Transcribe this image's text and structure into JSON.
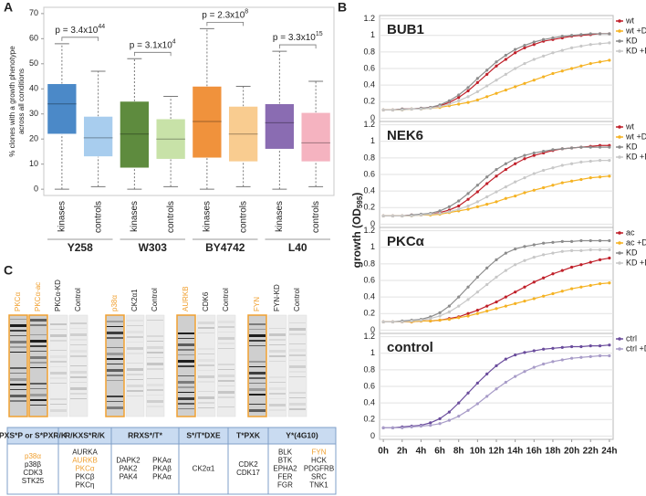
{
  "panels": [
    "A",
    "B",
    "C"
  ],
  "chart_data": [
    {
      "type": "box",
      "ylabel": [
        "% clones with a growth phenotype",
        "across all conditions"
      ],
      "ylim": [
        -2.5,
        72.5
      ],
      "yticks": [
        0,
        10,
        20,
        30,
        40,
        50,
        60,
        70
      ],
      "groups": [
        {
          "name": "Y258",
          "p_value": {
            "text": "p = 3.4x10",
            "exponent": "44"
          },
          "boxes": [
            {
              "label": "kinases",
              "color": "#4b89c8",
              "whisker_low": 0,
              "q1": 22,
              "median": 34,
              "q3": 42,
              "whisker_high": 58
            },
            {
              "label": "controls",
              "color": "#a8cdee",
              "whisker_low": 1,
              "q1": 13,
              "median": 20.5,
              "q3": 29,
              "whisker_high": 47
            }
          ]
        },
        {
          "name": "W303",
          "p_value": {
            "text": "p = 3.1x10",
            "exponent": "4"
          },
          "boxes": [
            {
              "label": "kinases",
              "color": "#5e8b3e",
              "whisker_low": 0,
              "q1": 8.5,
              "median": 22,
              "q3": 35,
              "whisker_high": 52
            },
            {
              "label": "controls",
              "color": "#c8e2a8",
              "whisker_low": 1,
              "q1": 12,
              "median": 20,
              "q3": 28,
              "whisker_high": 37
            }
          ]
        },
        {
          "name": "BY4742",
          "p_value": {
            "text": "p = 2.3x10",
            "exponent": "8"
          },
          "boxes": [
            {
              "label": "kinases",
              "color": "#f0923c",
              "whisker_low": 0,
              "q1": 12.5,
              "median": 27,
              "q3": 41,
              "whisker_high": 64
            },
            {
              "label": "controls",
              "color": "#f9cc90",
              "whisker_low": 1,
              "q1": 11,
              "median": 22,
              "q3": 33,
              "whisker_high": 41
            }
          ]
        },
        {
          "name": "L40",
          "p_value": {
            "text": "p = 3.3x10",
            "exponent": "15"
          },
          "boxes": [
            {
              "label": "kinases",
              "color": "#8a6cb2",
              "whisker_low": 0,
              "q1": 16,
              "median": 26.5,
              "q3": 34,
              "whisker_high": 55
            },
            {
              "label": "controls",
              "color": "#f5b3c0",
              "whisker_low": 1,
              "q1": 11,
              "median": 18.5,
              "q3": 30.5,
              "whisker_high": 43
            }
          ]
        }
      ]
    },
    {
      "type": "line",
      "title": "BUB1",
      "x": [
        0,
        1,
        2,
        3,
        4,
        5,
        6,
        7,
        8,
        9,
        10,
        11,
        12,
        13,
        14,
        15,
        16,
        17,
        18,
        19,
        20,
        21,
        22,
        23,
        24
      ],
      "xlim": [
        -0.4,
        24.4
      ],
      "ylim": [
        -0.04,
        1.24
      ],
      "yticks": [
        0,
        0.2,
        0.4,
        0.6,
        0.8,
        1,
        1.2
      ],
      "grid": true,
      "series": [
        {
          "name": "wt",
          "color": "#c0202a",
          "values": [
            0.1,
            0.1,
            0.11,
            0.11,
            0.12,
            0.13,
            0.15,
            0.19,
            0.25,
            0.33,
            0.43,
            0.53,
            0.63,
            0.71,
            0.79,
            0.85,
            0.89,
            0.93,
            0.95,
            0.97,
            0.99,
            1.0,
            1.01,
            1.02,
            1.02
          ]
        },
        {
          "name": "wt +DMSO",
          "color": "#f5b324",
          "values": [
            0.1,
            0.1,
            0.1,
            0.11,
            0.11,
            0.12,
            0.13,
            0.15,
            0.17,
            0.19,
            0.22,
            0.26,
            0.3,
            0.34,
            0.38,
            0.42,
            0.46,
            0.5,
            0.54,
            0.57,
            0.6,
            0.63,
            0.66,
            0.68,
            0.7
          ]
        },
        {
          "name": "KD",
          "color": "#8c8c8c",
          "values": [
            0.1,
            0.1,
            0.11,
            0.11,
            0.12,
            0.13,
            0.16,
            0.21,
            0.28,
            0.37,
            0.48,
            0.58,
            0.68,
            0.76,
            0.83,
            0.88,
            0.92,
            0.95,
            0.97,
            0.99,
            1.0,
            1.01,
            1.02,
            1.02,
            1.02
          ]
        },
        {
          "name": "KD +DMSO",
          "color": "#c8c8c8",
          "values": [
            0.1,
            0.1,
            0.1,
            0.11,
            0.11,
            0.12,
            0.14,
            0.17,
            0.21,
            0.26,
            0.32,
            0.39,
            0.46,
            0.53,
            0.6,
            0.66,
            0.71,
            0.75,
            0.79,
            0.82,
            0.85,
            0.87,
            0.89,
            0.9,
            0.91
          ]
        }
      ]
    },
    {
      "type": "line",
      "title": "NEK6",
      "x": [
        0,
        1,
        2,
        3,
        4,
        5,
        6,
        7,
        8,
        9,
        10,
        11,
        12,
        13,
        14,
        15,
        16,
        17,
        18,
        19,
        20,
        21,
        22,
        23,
        24
      ],
      "xlim": [
        -0.4,
        24.4
      ],
      "ylim": [
        -0.04,
        1.24
      ],
      "yticks": [
        0,
        0.2,
        0.4,
        0.6,
        0.8,
        1,
        1.2
      ],
      "grid": true,
      "series": [
        {
          "name": "wt",
          "color": "#c0202a",
          "values": [
            0.1,
            0.1,
            0.1,
            0.11,
            0.11,
            0.12,
            0.14,
            0.17,
            0.22,
            0.3,
            0.39,
            0.49,
            0.58,
            0.66,
            0.73,
            0.79,
            0.83,
            0.86,
            0.89,
            0.91,
            0.92,
            0.93,
            0.94,
            0.95,
            0.95
          ]
        },
        {
          "name": "wt +DMSO",
          "color": "#f5b324",
          "values": [
            0.1,
            0.1,
            0.1,
            0.1,
            0.11,
            0.11,
            0.12,
            0.14,
            0.16,
            0.18,
            0.21,
            0.24,
            0.27,
            0.31,
            0.34,
            0.38,
            0.41,
            0.44,
            0.47,
            0.5,
            0.52,
            0.54,
            0.56,
            0.57,
            0.58
          ]
        },
        {
          "name": "KD",
          "color": "#8c8c8c",
          "values": [
            0.1,
            0.1,
            0.1,
            0.11,
            0.12,
            0.13,
            0.16,
            0.21,
            0.28,
            0.37,
            0.47,
            0.57,
            0.66,
            0.73,
            0.79,
            0.83,
            0.86,
            0.88,
            0.9,
            0.91,
            0.92,
            0.93,
            0.93,
            0.93,
            0.93
          ]
        },
        {
          "name": "KD +DMSO",
          "color": "#c8c8c8",
          "values": [
            0.1,
            0.1,
            0.1,
            0.1,
            0.11,
            0.12,
            0.13,
            0.15,
            0.18,
            0.22,
            0.27,
            0.33,
            0.39,
            0.45,
            0.51,
            0.56,
            0.61,
            0.65,
            0.68,
            0.71,
            0.73,
            0.75,
            0.76,
            0.77,
            0.77
          ]
        }
      ]
    },
    {
      "type": "line",
      "title": "PKCα",
      "x": [
        0,
        1,
        2,
        3,
        4,
        5,
        6,
        7,
        8,
        9,
        10,
        11,
        12,
        13,
        14,
        15,
        16,
        17,
        18,
        19,
        20,
        21,
        22,
        23,
        24
      ],
      "xlim": [
        -0.4,
        24.4
      ],
      "ylim": [
        -0.04,
        1.24
      ],
      "yticks": [
        0,
        0.2,
        0.4,
        0.6,
        0.8,
        1,
        1.2
      ],
      "grid": true,
      "series": [
        {
          "name": "ac",
          "color": "#c0202a",
          "values": [
            0.1,
            0.1,
            0.1,
            0.1,
            0.11,
            0.11,
            0.12,
            0.14,
            0.16,
            0.2,
            0.24,
            0.29,
            0.34,
            0.4,
            0.46,
            0.52,
            0.58,
            0.63,
            0.68,
            0.72,
            0.76,
            0.79,
            0.82,
            0.85,
            0.87
          ]
        },
        {
          "name": "ac +DMSO",
          "color": "#f5b324",
          "values": [
            0.1,
            0.1,
            0.1,
            0.1,
            0.11,
            0.11,
            0.12,
            0.13,
            0.15,
            0.17,
            0.2,
            0.23,
            0.26,
            0.29,
            0.32,
            0.35,
            0.38,
            0.41,
            0.44,
            0.47,
            0.5,
            0.52,
            0.54,
            0.56,
            0.57
          ]
        },
        {
          "name": "KD",
          "color": "#8c8c8c",
          "values": [
            0.1,
            0.1,
            0.11,
            0.12,
            0.13,
            0.16,
            0.21,
            0.29,
            0.4,
            0.52,
            0.64,
            0.75,
            0.85,
            0.93,
            0.98,
            1.01,
            1.03,
            1.05,
            1.06,
            1.07,
            1.07,
            1.08,
            1.08,
            1.08,
            1.08
          ]
        },
        {
          "name": "KD +DMSO",
          "color": "#c8c8c8",
          "values": [
            0.1,
            0.1,
            0.1,
            0.11,
            0.12,
            0.14,
            0.17,
            0.22,
            0.29,
            0.37,
            0.46,
            0.55,
            0.64,
            0.72,
            0.79,
            0.84,
            0.88,
            0.91,
            0.93,
            0.95,
            0.96,
            0.96,
            0.97,
            0.97,
            0.97
          ]
        }
      ]
    },
    {
      "type": "line",
      "title": "control",
      "x": [
        0,
        1,
        2,
        3,
        4,
        5,
        6,
        7,
        8,
        9,
        10,
        11,
        12,
        13,
        14,
        15,
        16,
        17,
        18,
        19,
        20,
        21,
        22,
        23,
        24
      ],
      "xlim": [
        -0.4,
        24.4
      ],
      "ylim": [
        -0.04,
        1.24
      ],
      "yticks": [
        0,
        0.2,
        0.4,
        0.6,
        0.8,
        1,
        1.2
      ],
      "grid": true,
      "xticks": [
        {
          "value": 0,
          "label": "0h"
        },
        {
          "value": 2,
          "label": "2h"
        },
        {
          "value": 4,
          "label": "4h"
        },
        {
          "value": 6,
          "label": "6h"
        },
        {
          "value": 8,
          "label": "8h"
        },
        {
          "value": 10,
          "label": "10h"
        },
        {
          "value": 12,
          "label": "12h"
        },
        {
          "value": 14,
          "label": "14h"
        },
        {
          "value": 16,
          "label": "16h"
        },
        {
          "value": 18,
          "label": "18h"
        },
        {
          "value": 20,
          "label": "20h"
        },
        {
          "value": 22,
          "label": "22h"
        },
        {
          "value": 24,
          "label": "24h"
        }
      ],
      "series": [
        {
          "name": "ctrl",
          "color": "#6a4c9c",
          "values": [
            0.1,
            0.1,
            0.11,
            0.12,
            0.13,
            0.16,
            0.21,
            0.29,
            0.4,
            0.52,
            0.64,
            0.75,
            0.85,
            0.93,
            0.98,
            1.01,
            1.03,
            1.05,
            1.06,
            1.07,
            1.08,
            1.08,
            1.09,
            1.09,
            1.1
          ]
        },
        {
          "name": "ctrl +DMSO",
          "color": "#a89cc8",
          "values": [
            0.1,
            0.1,
            0.1,
            0.11,
            0.12,
            0.13,
            0.15,
            0.19,
            0.24,
            0.31,
            0.39,
            0.48,
            0.57,
            0.65,
            0.72,
            0.78,
            0.83,
            0.87,
            0.9,
            0.92,
            0.94,
            0.95,
            0.96,
            0.97,
            0.97
          ]
        }
      ]
    }
  ],
  "panel_b_ylabel": {
    "text": "growth (OD",
    "subscript": "595",
    "suffix": ")"
  },
  "blots": [
    [
      {
        "label": "PKCα",
        "color": "#f0a030"
      },
      {
        "label": "PKCα-ac",
        "color": "#f0a030"
      },
      {
        "label": "PKCα-KD"
      },
      {
        "label": "Control"
      }
    ],
    [
      {
        "label": "p38α",
        "color": "#f0a030"
      },
      {
        "label": "CK2α1"
      },
      {
        "label": "Control"
      }
    ],
    [
      {
        "label": "AURKB",
        "color": "#f0a030"
      },
      {
        "label": "CDK6"
      },
      {
        "label": "Control"
      }
    ],
    [
      {
        "label": "FYN",
        "color": "#f0a030"
      },
      {
        "label": "FYN-KD"
      },
      {
        "label": "Control"
      }
    ]
  ],
  "table": {
    "header": [
      "PXS*P or S*PXR/K",
      "R/KXS*R/K",
      "RRXS*/T*",
      "S*/T*DXE",
      "T*PXK",
      "Y*(4G10)"
    ],
    "cells": [
      [
        [
          {
            "text": "p38α",
            "color": "#f0a030"
          },
          {
            "text": "p38β"
          },
          {
            "text": "CDK3"
          },
          {
            "text": "STK25"
          }
        ]
      ],
      [
        [
          {
            "text": "AURKA"
          },
          {
            "text": "AURKB",
            "color": "#f0a030"
          },
          {
            "text": "PKCα",
            "color": "#f0a030"
          },
          {
            "text": "PKCβ"
          },
          {
            "text": "PKCη"
          }
        ]
      ],
      [
        [
          {
            "text": "DAPK2"
          },
          {
            "text": "PAK2"
          },
          {
            "text": "PAK4"
          }
        ],
        [
          {
            "text": "PKAα"
          },
          {
            "text": "PKAβ"
          },
          {
            "text": "PKAα"
          }
        ]
      ],
      [
        [
          {
            "text": "CK2α1"
          }
        ]
      ],
      [
        [
          {
            "text": "CDK2"
          },
          {
            "text": "CDK17"
          }
        ]
      ],
      [
        [
          {
            "text": "BLK"
          },
          {
            "text": "BTK"
          },
          {
            "text": "EPHA2"
          },
          {
            "text": "FER"
          },
          {
            "text": "FGR"
          }
        ],
        [
          {
            "text": "FYN",
            "color": "#f0a030"
          },
          {
            "text": "HCK"
          },
          {
            "text": "PDGFRB"
          },
          {
            "text": "SRC"
          },
          {
            "text": "TNK1"
          }
        ]
      ]
    ]
  }
}
